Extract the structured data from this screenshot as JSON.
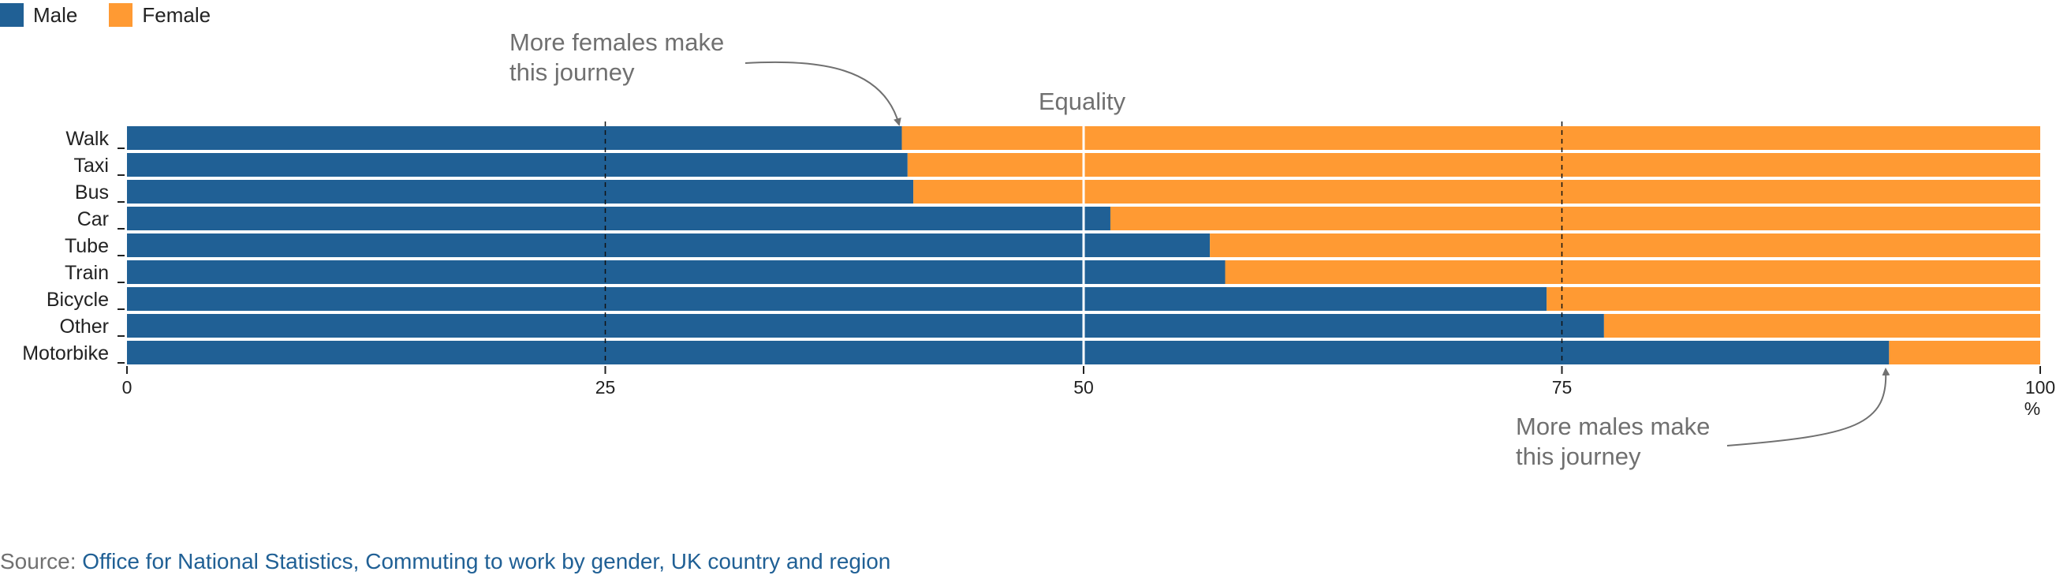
{
  "legend": {
    "male_label": "Male",
    "female_label": "Female"
  },
  "colors": {
    "male": "#206095",
    "female": "#FF9A33",
    "annotation": "#707070",
    "link": "#206095"
  },
  "annotations": {
    "equality_label": "Equality",
    "females_line1": "More females make",
    "females_line2": "this journey",
    "males_line1": "More males make",
    "males_line2": "this journey"
  },
  "source": {
    "prefix": "Source: ",
    "link_text": "Office for National Statistics, Commuting to work by gender, UK country and region"
  },
  "chart_data": {
    "type": "bar",
    "orientation": "horizontal",
    "stacked": true,
    "categories": [
      "Walk",
      "Taxi",
      "Bus",
      "Car",
      "Tube",
      "Train",
      "Bicycle",
      "Other",
      "Motorbike"
    ],
    "series": [
      {
        "name": "Male",
        "values": [
          40.5,
          40.8,
          41.1,
          51.4,
          56.6,
          57.4,
          74.2,
          77.2,
          92.1
        ]
      },
      {
        "name": "Female",
        "values": [
          59.5,
          59.2,
          58.9,
          48.6,
          43.4,
          42.6,
          25.8,
          22.8,
          7.9
        ]
      }
    ],
    "xlim": [
      0,
      100
    ],
    "xticks": [
      0,
      25,
      50,
      75,
      100
    ],
    "xunit": "%",
    "grid": true,
    "legend_position": "top-left"
  }
}
